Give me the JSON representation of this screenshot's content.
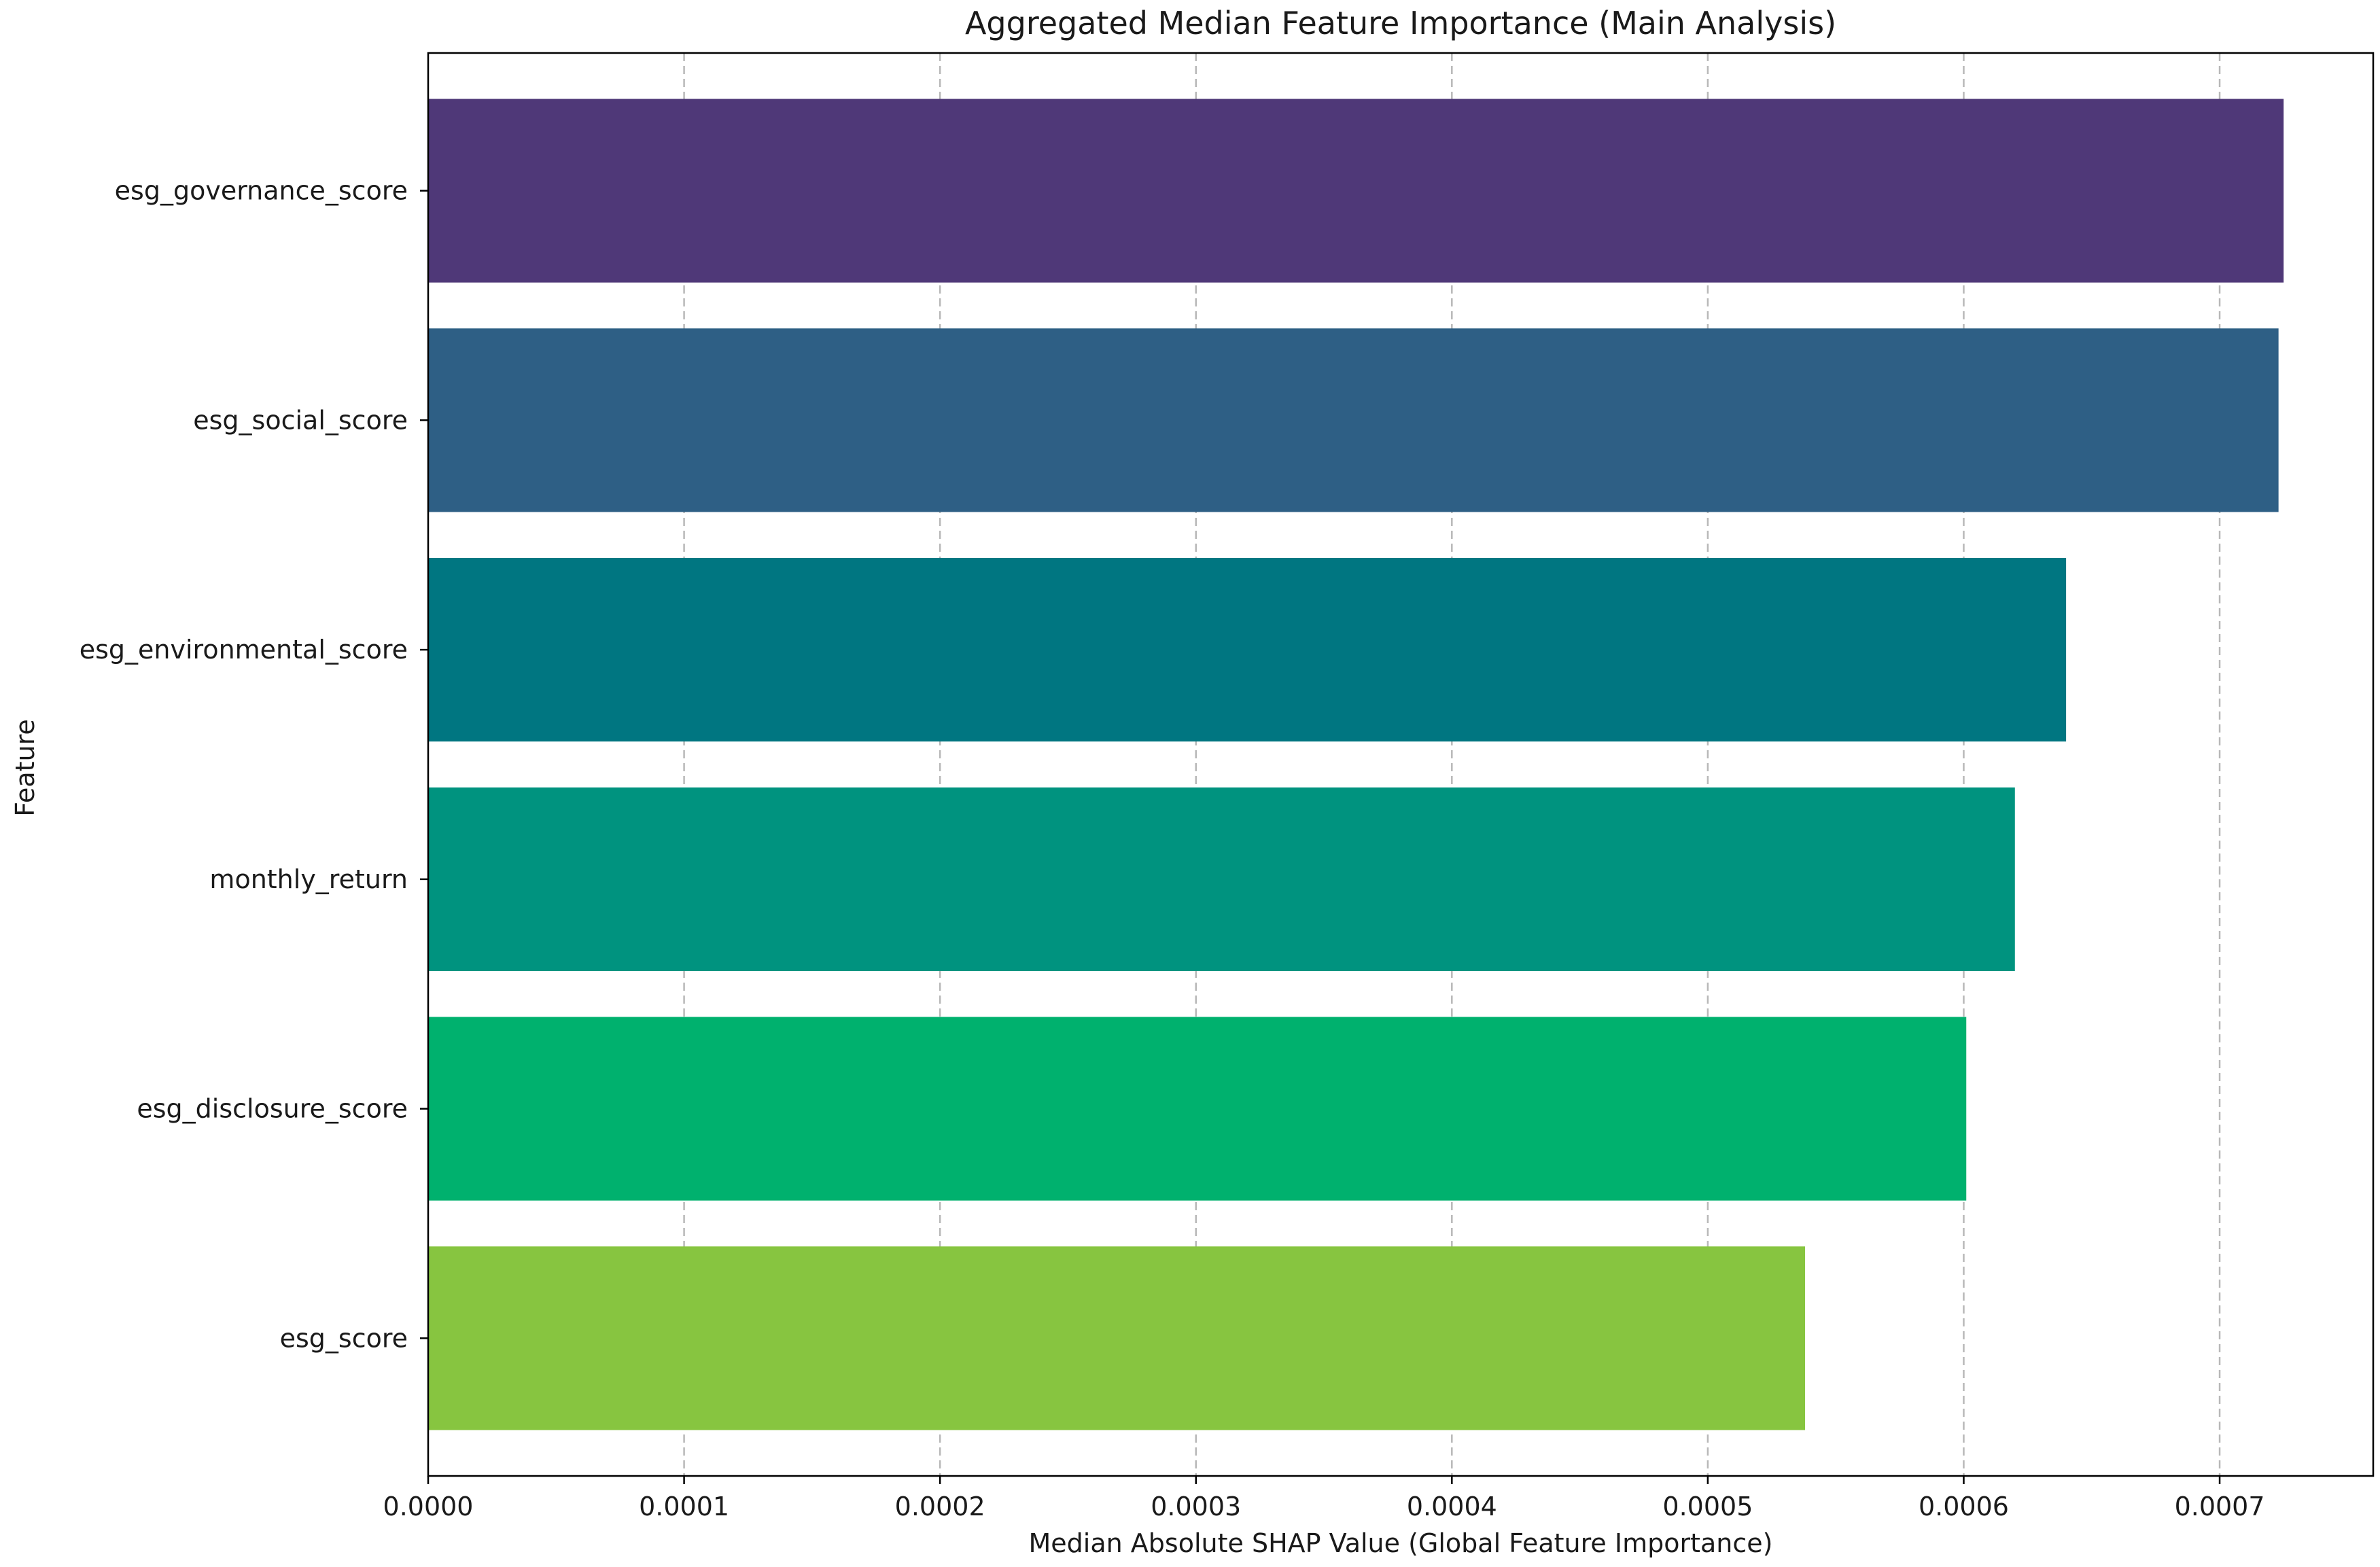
{
  "chart_data": {
    "type": "bar",
    "orientation": "horizontal",
    "title": "Aggregated Median Feature Importance (Main Analysis)",
    "xlabel": "Median Absolute SHAP Value (Global Feature Importance)",
    "ylabel": "Feature",
    "categories": [
      "esg_governance_score",
      "esg_social_score",
      "esg_environmental_score",
      "monthly_return",
      "esg_disclosure_score",
      "esg_score"
    ],
    "values": [
      0.000725,
      0.000723,
      0.00064,
      0.00062,
      0.000601,
      0.000538
    ],
    "colors": [
      "#4f3878",
      "#2e5f85",
      "#007681",
      "#00937f",
      "#00b16e",
      "#87c540"
    ],
    "xlim": [
      0,
      0.00076
    ],
    "xticks": [
      0,
      0.0001,
      0.0002,
      0.0003,
      0.0004,
      0.0005,
      0.0006,
      0.0007
    ],
    "xtick_labels": [
      "0.0000",
      "0.0001",
      "0.0002",
      "0.0003",
      "0.0004",
      "0.0005",
      "0.0006",
      "0.0007"
    ],
    "grid": "x-dashed",
    "legend": "none"
  }
}
